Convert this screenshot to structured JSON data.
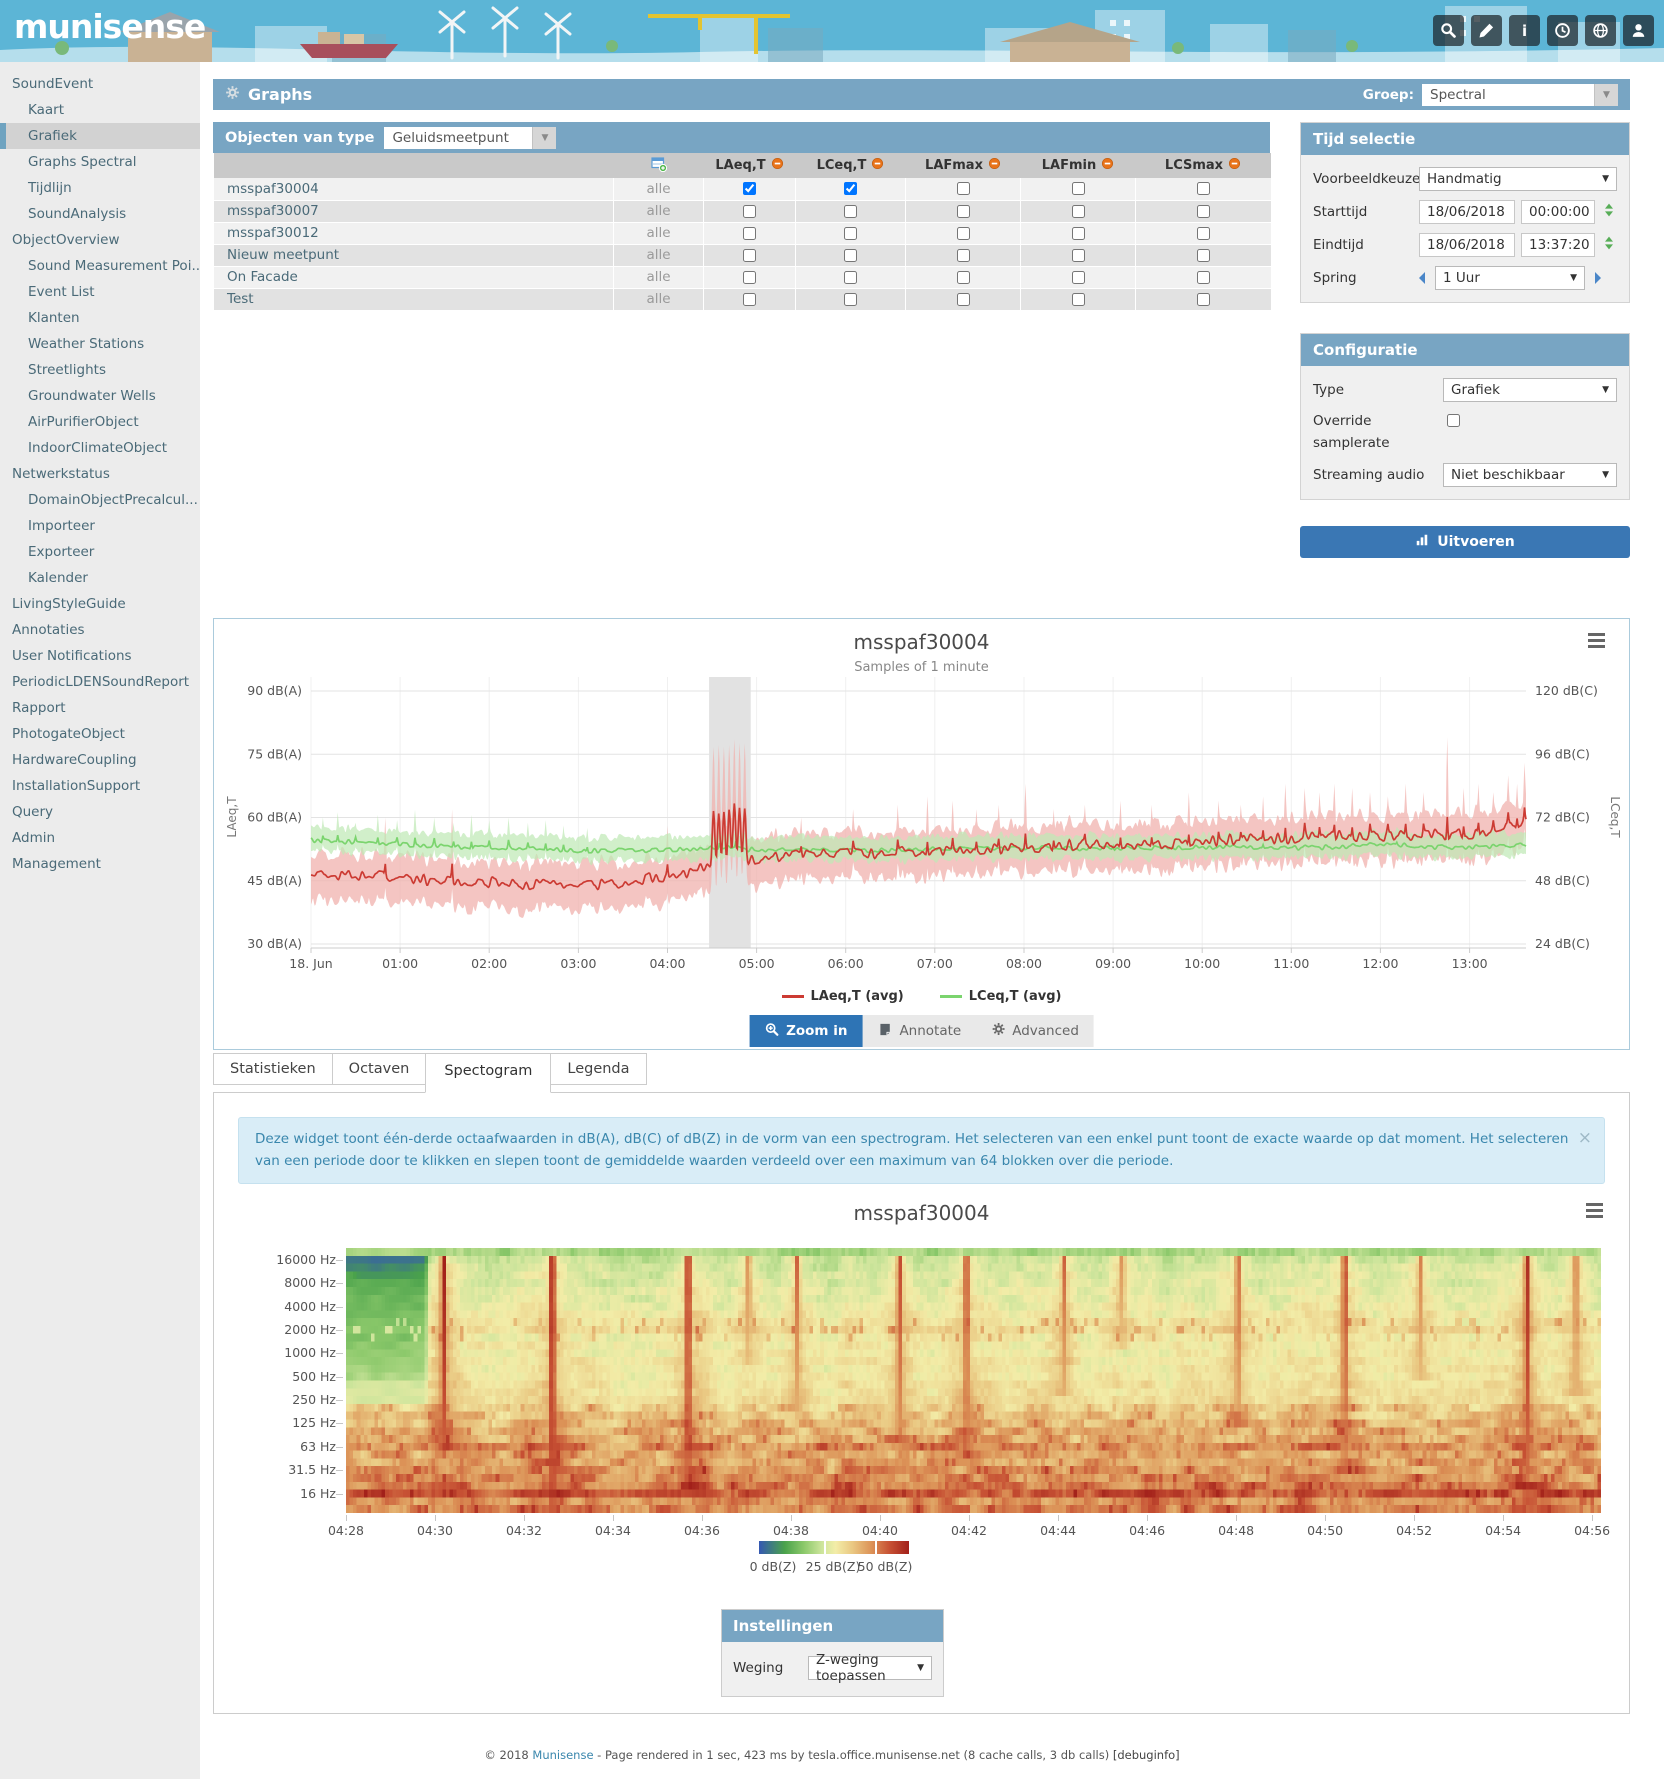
{
  "header": {
    "logo": "munisense",
    "icons": [
      "search",
      "pencil",
      "info",
      "clock",
      "globe",
      "user"
    ]
  },
  "sidebar": {
    "items": [
      {
        "label": "SoundEvent",
        "level": 0
      },
      {
        "label": "Kaart",
        "level": 1
      },
      {
        "label": "Grafiek",
        "level": 1,
        "active": true
      },
      {
        "label": "Graphs Spectral",
        "level": 1
      },
      {
        "label": "Tijdlijn",
        "level": 1
      },
      {
        "label": "SoundAnalysis",
        "level": 1
      },
      {
        "label": "ObjectOverview",
        "level": 0
      },
      {
        "label": "Sound Measurement Poi...",
        "level": 1
      },
      {
        "label": "Event List",
        "level": 1
      },
      {
        "label": "Klanten",
        "level": 1
      },
      {
        "label": "Weather Stations",
        "level": 1
      },
      {
        "label": "Streetlights",
        "level": 1
      },
      {
        "label": "Groundwater Wells",
        "level": 1
      },
      {
        "label": "AirPurifierObject",
        "level": 1
      },
      {
        "label": "IndoorClimateObject",
        "level": 1
      },
      {
        "label": "Netwerkstatus",
        "level": 0
      },
      {
        "label": "DomainObjectPrecalcul...",
        "level": 1
      },
      {
        "label": "Importeer",
        "level": 1
      },
      {
        "label": "Exporteer",
        "level": 1
      },
      {
        "label": "Kalender",
        "level": 1
      },
      {
        "label": "LivingStyleGuide",
        "level": 0
      },
      {
        "label": "Annotaties",
        "level": 0
      },
      {
        "label": "User Notifications",
        "level": 0
      },
      {
        "label": "PeriodicLDENSoundReport",
        "level": 0
      },
      {
        "label": "Rapport",
        "level": 0
      },
      {
        "label": "PhotogateObject",
        "level": 0
      },
      {
        "label": "HardwareCoupling",
        "level": 0
      },
      {
        "label": "InstallationSupport",
        "level": 0
      },
      {
        "label": "Query",
        "level": 0
      },
      {
        "label": "Admin",
        "level": 0
      },
      {
        "label": "Management",
        "level": 0
      }
    ]
  },
  "toolbar": {
    "title": "Graphs",
    "groep_label": "Groep:",
    "groep_value": "Spectral"
  },
  "object_table": {
    "filter_label": "Objecten van type",
    "filter_value": "Geluidsmeetpunt",
    "columns": [
      "LAeq,T",
      "LCeq,T",
      "LAFmax",
      "LAFmin",
      "LCSmax"
    ],
    "rows": [
      {
        "name": "msspaf30004",
        "scope": "alle",
        "checks": [
          true,
          true,
          false,
          false,
          false
        ]
      },
      {
        "name": "msspaf30007",
        "scope": "alle",
        "checks": [
          false,
          false,
          false,
          false,
          false
        ]
      },
      {
        "name": "msspaf30012",
        "scope": "alle",
        "checks": [
          false,
          false,
          false,
          false,
          false
        ]
      },
      {
        "name": "Nieuw meetpunt",
        "scope": "alle",
        "checks": [
          false,
          false,
          false,
          false,
          false
        ]
      },
      {
        "name": "On Facade",
        "scope": "alle",
        "checks": [
          false,
          false,
          false,
          false,
          false
        ]
      },
      {
        "name": "Test",
        "scope": "alle",
        "checks": [
          false,
          false,
          false,
          false,
          false
        ]
      }
    ]
  },
  "tijd_selectie": {
    "title": "Tijd selectie",
    "voorbeeldkeuzes_label": "Voorbeeldkeuzes",
    "voorbeeldkeuzes_value": "Handmatig",
    "starttijd_label": "Starttijd",
    "start_date": "18/06/2018",
    "start_time": "00:00:00",
    "eindtijd_label": "Eindtijd",
    "end_date": "18/06/2018",
    "end_time": "13:37:20",
    "spring_label": "Spring",
    "spring_value": "1 Uur"
  },
  "configuratie": {
    "title": "Configuratie",
    "type_label": "Type",
    "type_value": "Grafiek",
    "override_label": "Override samplerate",
    "override_checked": false,
    "streaming_label": "Streaming audio",
    "streaming_value": "Niet beschikbaar",
    "submit_label": "Uitvoeren"
  },
  "chart_buttons": {
    "zoom_in": "Zoom in",
    "annotate": "Annotate",
    "advanced": "Advanced"
  },
  "tabs": {
    "items": [
      "Statistieken",
      "Octaven",
      "Spectogram",
      "Legenda"
    ],
    "active_index": 2
  },
  "info_box": {
    "text": "Deze widget toont één-derde octaafwaarden in dB(A), dB(C) of dB(Z) in de vorm van een spectrogram. Het selecteren van een enkel punt toont de exacte waarde op dat moment. Het selecteren van een periode door te klikken en slepen toont de gemiddelde waarden verdeeld over een maximum van 64 blokken over die periode."
  },
  "instellingen": {
    "title": "Instellingen",
    "weging_label": "Weging",
    "weging_value": "Z-weging toepassen"
  },
  "footer": {
    "copyright": "© 2018 ",
    "brand": "Munisense",
    "text": " - Page rendered in 1 sec, 423 ms by tesla.office.munisense.net (8 cache calls, 3 db calls) ",
    "debug": "[debuginfo]"
  },
  "chart_data": [
    {
      "type": "line",
      "title": "msspaf30004",
      "subtitle": "Samples of 1 minute",
      "x_tick_labels": [
        "18. Jun",
        "01:00",
        "02:00",
        "03:00",
        "04:00",
        "05:00",
        "06:00",
        "07:00",
        "08:00",
        "09:00",
        "10:00",
        "11:00",
        "12:00",
        "13:00"
      ],
      "x_total_minutes": 818,
      "left_axis": {
        "title": "LAeq,T",
        "tick_labels": [
          "90 dB(A)",
          "75 dB(A)",
          "60 dB(A)",
          "45 dB(A)",
          "30 dB(A)"
        ],
        "tick_values": [
          90,
          75,
          60,
          45,
          30
        ]
      },
      "right_axis": {
        "title": "LCeq,T",
        "tick_labels": [
          "120 dB(C)",
          "96 dB(C)",
          "72 dB(C)",
          "48 dB(C)",
          "24 dB(C)"
        ],
        "tick_values": [
          120,
          96,
          72,
          48,
          24
        ]
      },
      "selection_minutes": [
        268,
        296
      ],
      "legend": [
        {
          "label": "LAeq,T (avg)",
          "color": "#cc3b33"
        },
        {
          "label": "LCeq,T (avg)",
          "color": "#7bd46e"
        }
      ],
      "series": [
        {
          "name": "LAeq,T (avg)",
          "axis": "left",
          "unit": "dB(A)",
          "color": "#cc3b33",
          "band_color": "#f0b2ad",
          "anchors": [
            [
              0,
              47
            ],
            [
              40,
              46
            ],
            [
              80,
              45
            ],
            [
              120,
              44.5
            ],
            [
              150,
              44
            ],
            [
              180,
              44
            ],
            [
              210,
              44.5
            ],
            [
              240,
              46
            ],
            [
              262,
              47.5
            ],
            [
              300,
              50
            ],
            [
              360,
              51.5
            ],
            [
              420,
              52.5
            ],
            [
              480,
              53
            ],
            [
              540,
              53.5
            ],
            [
              600,
              54
            ],
            [
              660,
              55
            ],
            [
              690,
              56
            ],
            [
              720,
              56
            ],
            [
              750,
              56.5
            ],
            [
              780,
              56.5
            ],
            [
              818,
              58.5
            ]
          ],
          "burst": {
            "range": [
              269,
              295
            ],
            "pulse_centers": [
              271,
              274.5,
              278,
              281.5,
              285,
              288.5,
              292
            ],
            "pulse_height": 13,
            "env_extra": 11
          },
          "peaks": [
            [
              50,
              60
            ],
            [
              95,
              62
            ],
            [
              240,
              58
            ],
            [
              330,
              60
            ],
            [
              365,
              62
            ],
            [
              395,
              63
            ],
            [
              415,
              65
            ],
            [
              432,
              64
            ],
            [
              448,
              62
            ],
            [
              463,
              63
            ],
            [
              481,
              68
            ],
            [
              500,
              62
            ],
            [
              521,
              63
            ],
            [
              545,
              64
            ],
            [
              566,
              63
            ],
            [
              591,
              66
            ],
            [
              611,
              64
            ],
            [
              626,
              63
            ],
            [
              641,
              65
            ],
            [
              656,
              68
            ],
            [
              669,
              67
            ],
            [
              679,
              66
            ],
            [
              689,
              68
            ],
            [
              701,
              67
            ],
            [
              713,
              66
            ],
            [
              725,
              65
            ],
            [
              737,
              68
            ],
            [
              749,
              66
            ],
            [
              765,
              79
            ],
            [
              776,
              67
            ],
            [
              786,
              68
            ],
            [
              796,
              66
            ],
            [
              806,
              70
            ],
            [
              812,
              68
            ],
            [
              817,
              73
            ]
          ],
          "env_up": 4,
          "env_down": 5
        },
        {
          "name": "LCeq,T (avg)",
          "axis": "right",
          "unit": "dB(C)",
          "color": "#7bd46e",
          "band_color": "#bfe9b5",
          "anchors": [
            [
              0,
              63
            ],
            [
              20,
              62.5
            ],
            [
              40,
              62
            ],
            [
              70,
              61.5
            ],
            [
              100,
              61
            ],
            [
              130,
              60.5
            ],
            [
              160,
              60
            ],
            [
              200,
              59.5
            ],
            [
              240,
              59.5
            ],
            [
              266,
              60
            ],
            [
              280,
              61.5
            ],
            [
              296,
              60
            ],
            [
              340,
              59.8
            ],
            [
              400,
              60
            ],
            [
              460,
              60.2
            ],
            [
              520,
              60.3
            ],
            [
              580,
              60.5
            ],
            [
              640,
              60.8
            ],
            [
              700,
              61
            ],
            [
              760,
              61.2
            ],
            [
              818,
              61.5
            ]
          ],
          "peaks": [
            [
              8,
              72
            ],
            [
              18,
              74
            ],
            [
              30,
              70
            ],
            [
              45,
              73
            ],
            [
              58,
              71
            ],
            [
              70,
              75
            ],
            [
              83,
              72
            ],
            [
              96,
              70
            ],
            [
              108,
              73
            ],
            [
              120,
              71
            ],
            [
              133,
              72
            ],
            [
              146,
              70
            ],
            [
              158,
              71
            ],
            [
              170,
              69
            ],
            [
              186,
              68
            ],
            [
              275,
              70
            ],
            [
              286,
              71
            ],
            [
              540,
              66
            ],
            [
              641,
              66
            ],
            [
              731,
              66
            ]
          ],
          "env_up": 4,
          "env_down": 3
        }
      ]
    },
    {
      "type": "heatmap",
      "title": "msspaf30004",
      "unit": "dB(Z)",
      "y_tick_labels": [
        "16000 Hz",
        "8000 Hz",
        "4000 Hz",
        "2000 Hz",
        "1000 Hz",
        "500 Hz",
        "250 Hz",
        "125 Hz",
        "63 Hz",
        "31.5 Hz",
        "16 Hz"
      ],
      "y_tick_rows": [
        1,
        4,
        7,
        10,
        13,
        16,
        19,
        22,
        25,
        28,
        31
      ],
      "x_tick_labels": [
        "04:28",
        "04:30",
        "04:32",
        "04:34",
        "04:36",
        "04:38",
        "04:40",
        "04:42",
        "04:44",
        "04:46",
        "04:48",
        "04:50",
        "04:52",
        "04:54",
        "04:56"
      ],
      "duration_minutes": 28.2,
      "rows": 34,
      "cols": 352,
      "base_levels": [
        19,
        22,
        23,
        24,
        24,
        25,
        25,
        26,
        27,
        28,
        30,
        27,
        27,
        27,
        28,
        28,
        28,
        29,
        29,
        30,
        32,
        33,
        35,
        36,
        37,
        40,
        37,
        38,
        39,
        40,
        42,
        46,
        40,
        42
      ],
      "quiet_block": {
        "end_minute": 1.85,
        "row_levels": [
          19,
          4,
          6,
          9,
          11,
          12,
          13,
          13,
          14,
          15,
          16,
          15,
          16,
          17,
          17,
          18,
          19,
          23,
          23,
          24
        ]
      },
      "speckle_rows": [
        9,
        10,
        11
      ],
      "events": [
        {
          "t": 2.15,
          "level": 50,
          "depth": 26
        },
        {
          "t": 4.6,
          "level": 52,
          "depth": 33
        },
        {
          "t": 7.65,
          "level": 50,
          "depth": 30
        },
        {
          "t": 9.0,
          "level": 38,
          "depth": 14
        },
        {
          "t": 10.1,
          "level": 40,
          "depth": 20
        },
        {
          "t": 12.4,
          "level": 44,
          "depth": 24
        },
        {
          "t": 13.9,
          "level": 46,
          "depth": 26
        },
        {
          "t": 16.1,
          "level": 40,
          "depth": 18
        },
        {
          "t": 17.4,
          "level": 36,
          "depth": 12
        },
        {
          "t": 20.0,
          "level": 42,
          "depth": 22
        },
        {
          "t": 22.4,
          "level": 46,
          "depth": 28
        },
        {
          "t": 24.1,
          "level": 38,
          "depth": 16
        },
        {
          "t": 26.5,
          "level": 48,
          "depth": 30
        },
        {
          "t": 27.6,
          "level": 40,
          "depth": 18
        }
      ],
      "colorscale": {
        "labels": [
          "0 dB(Z)",
          "25 dB(Z)",
          "50 dB(Z)"
        ],
        "stops": [
          [
            0,
            "#3558b3"
          ],
          [
            9,
            "#4aa24b"
          ],
          [
            16,
            "#8cc96b"
          ],
          [
            22,
            "#cde59c"
          ],
          [
            27,
            "#f3eda8"
          ],
          [
            33,
            "#eac983"
          ],
          [
            40,
            "#dc9257"
          ],
          [
            46,
            "#c75134"
          ],
          [
            53,
            "#a2201a"
          ]
        ]
      }
    }
  ]
}
